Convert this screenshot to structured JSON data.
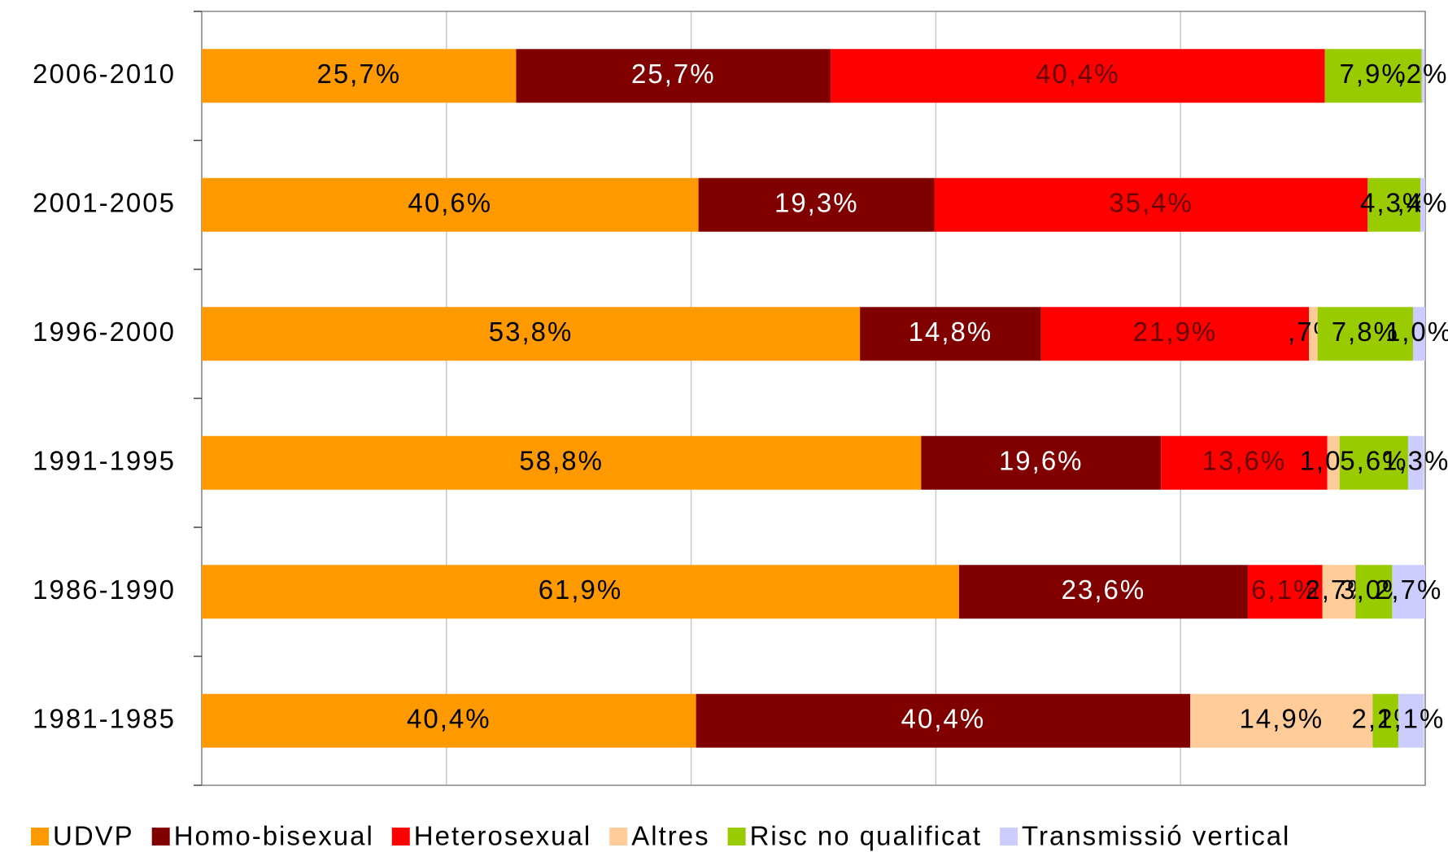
{
  "chart_data": {
    "type": "stacked-barh",
    "categories": [
      "2006-2010",
      "2001-2005",
      "1996-2000",
      "1991-1995",
      "1986-1990",
      "1981-1985"
    ],
    "series": [
      {
        "name": "UDVP",
        "color": "#ff9900",
        "values": [
          25.7,
          40.6,
          53.8,
          58.8,
          61.9,
          40.4
        ],
        "value_labels": [
          "25,7%",
          "40,6%",
          "53,8%",
          "58,8%",
          "61,9%",
          "40,4%"
        ]
      },
      {
        "name": "Homo-bisexual",
        "color": "#800000",
        "values": [
          25.7,
          19.3,
          14.8,
          19.6,
          23.6,
          40.4
        ],
        "value_labels": [
          "25,7%",
          "19,3%",
          "14,8%",
          "19,6%",
          "23,6%",
          "40,4%"
        ]
      },
      {
        "name": "Heterosexual",
        "color": "#ff0000",
        "values": [
          40.4,
          35.4,
          21.9,
          13.6,
          6.1,
          0
        ],
        "value_labels": [
          "40,4%",
          "35,4%",
          "21,9%",
          "13,6%",
          "6,1%",
          null
        ]
      },
      {
        "name": "Altres",
        "color": "#ffcc99",
        "values": [
          0,
          0,
          0.7,
          1.0,
          2.7,
          14.9
        ],
        "value_labels": [
          null,
          null,
          ",7%",
          "1,0%",
          "2,7%",
          "14,9%"
        ]
      },
      {
        "name": "Risc no qualificat",
        "color": "#99cc00",
        "values": [
          7.9,
          4.3,
          7.8,
          5.6,
          3.0,
          2.1
        ],
        "value_labels": [
          "7,9%",
          "4,3%",
          "7,8%",
          "5,6%",
          "3,0%",
          "2,1%"
        ]
      },
      {
        "name": "Transmissió vertical",
        "color": "#ccccff",
        "values": [
          0.2,
          0.4,
          1.0,
          1.3,
          2.7,
          2.1
        ],
        "value_labels": [
          ",2%",
          ",4%",
          "1,0%",
          "1,3%",
          "2,7%",
          "2,1%"
        ]
      }
    ],
    "xlim": [
      0,
      100
    ],
    "xticks": [
      0,
      20,
      40,
      60,
      80,
      100
    ],
    "grid": true
  }
}
